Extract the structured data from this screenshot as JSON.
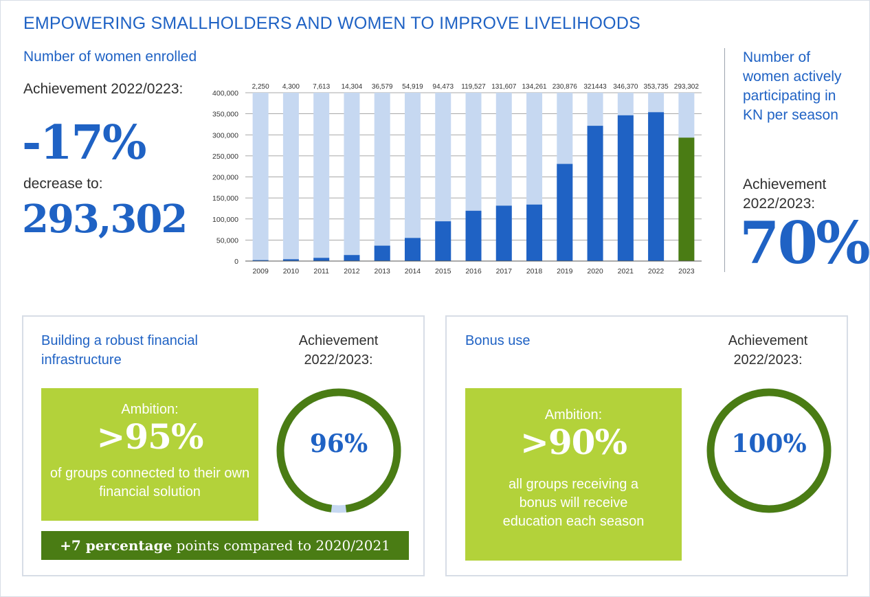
{
  "header": {
    "title": "EMPOWERING SMALLHOLDERS AND WOMEN TO IMPROVE LIVELIHOODS",
    "subtitle": "Number of women enrolled"
  },
  "left_stats": {
    "achievement_label": "Achievement 2022/0223:",
    "change": "-17%",
    "decrease_label": "decrease to:",
    "value": "293,302"
  },
  "right_stats": {
    "title": "Number of women actively participating in KN per season",
    "achievement_label": "Achievement 2022/2023:",
    "value": "70%"
  },
  "chart_data": {
    "type": "bar",
    "categories": [
      "2009",
      "2010",
      "2011",
      "2012",
      "2013",
      "2014",
      "2015",
      "2016",
      "2017",
      "2018",
      "2019",
      "2020",
      "2021",
      "2022",
      "2023"
    ],
    "values": [
      2250,
      4300,
      7613,
      14304,
      36579,
      54919,
      94473,
      119527,
      131607,
      134261,
      230876,
      321443,
      346370,
      353735,
      293302
    ],
    "data_labels": [
      "2,250",
      "4,300",
      "7,613",
      "14,304",
      "36,579",
      "54,919",
      "94,473",
      "119,527",
      "131,607",
      "134,261",
      "230,876",
      "321443",
      "346,370",
      "353,735",
      "293,302"
    ],
    "ylim": [
      0,
      400000
    ],
    "yticks": [
      "0",
      "50,000",
      "100,000",
      "150,000",
      "200,000",
      "250,000",
      "300,000",
      "350,000",
      "400,000"
    ],
    "grid": true,
    "colors": {
      "bar": "#1f62c4",
      "highlight_bar": "#4a7c14",
      "background_bar": "#c6d8f1"
    }
  },
  "panel_financial": {
    "title": "Building a robust financial infrastructure",
    "achievement_label": "Achievement 2022/2023:",
    "ambition_label": "Ambition:",
    "ambition_value": ">95%",
    "ambition_desc": "of groups connected to their own financial solution",
    "ring_value": "96%",
    "ring_fraction": 0.96,
    "footer_bold": "+7 percentage",
    "footer_rest": " points compared to 2020/2021"
  },
  "panel_bonus": {
    "title": "Bonus use",
    "achievement_label": "Achievement 2022/2023:",
    "ambition_label": "Ambition:",
    "ambition_value": ">90%",
    "ambition_desc": "all groups receiving a bonus will receive education each season",
    "ring_value": "100%",
    "ring_fraction": 1.0
  },
  "colors": {
    "accent_blue": "#1f62c4",
    "ambition_green": "#b3d23a",
    "dark_green": "#4a7c14",
    "ring_track": "#c6d8f1"
  }
}
